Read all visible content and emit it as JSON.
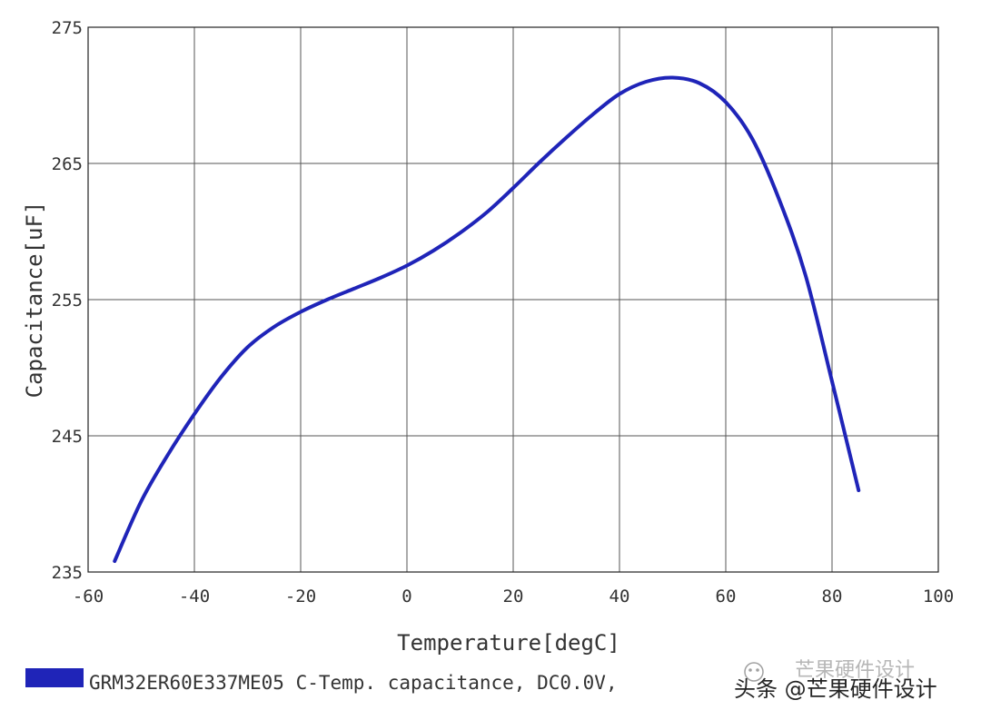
{
  "chart_data": {
    "type": "line",
    "title": "",
    "xlabel": "Temperature[degC]",
    "ylabel": "Capacitance[uF]",
    "xlim": [
      -60,
      100
    ],
    "ylim": [
      235,
      275
    ],
    "x_ticks": [
      "-60",
      "-40",
      "-20",
      "0",
      "20",
      "40",
      "60",
      "80",
      "100"
    ],
    "y_ticks": [
      "235",
      "245",
      "255",
      "265",
      "275"
    ],
    "grid": true,
    "legend_position": "bottom-left",
    "series": [
      {
        "name": "GRM32ER60E337ME05 C-Temp. capacitance, DC0.0V, ",
        "color": "#1f24b8",
        "x": [
          -55,
          -50,
          -45,
          -40,
          -35,
          -30,
          -25,
          -20,
          -15,
          -10,
          -5,
          0,
          5,
          10,
          15,
          20,
          25,
          30,
          35,
          40,
          45,
          50,
          55,
          60,
          65,
          70,
          75,
          80,
          85
        ],
        "y": [
          235.8,
          240.2,
          243.6,
          246.6,
          249.3,
          251.5,
          253.0,
          254.1,
          255.0,
          255.8,
          256.6,
          257.5,
          258.6,
          259.9,
          261.4,
          263.2,
          265.1,
          266.9,
          268.6,
          270.1,
          271.0,
          271.3,
          270.9,
          269.5,
          266.8,
          262.4,
          256.8,
          249.0,
          241.0
        ]
      }
    ]
  },
  "watermark": {
    "text": "头条 @芒果硬件设计",
    "logo_text": "芒果硬件设计"
  }
}
